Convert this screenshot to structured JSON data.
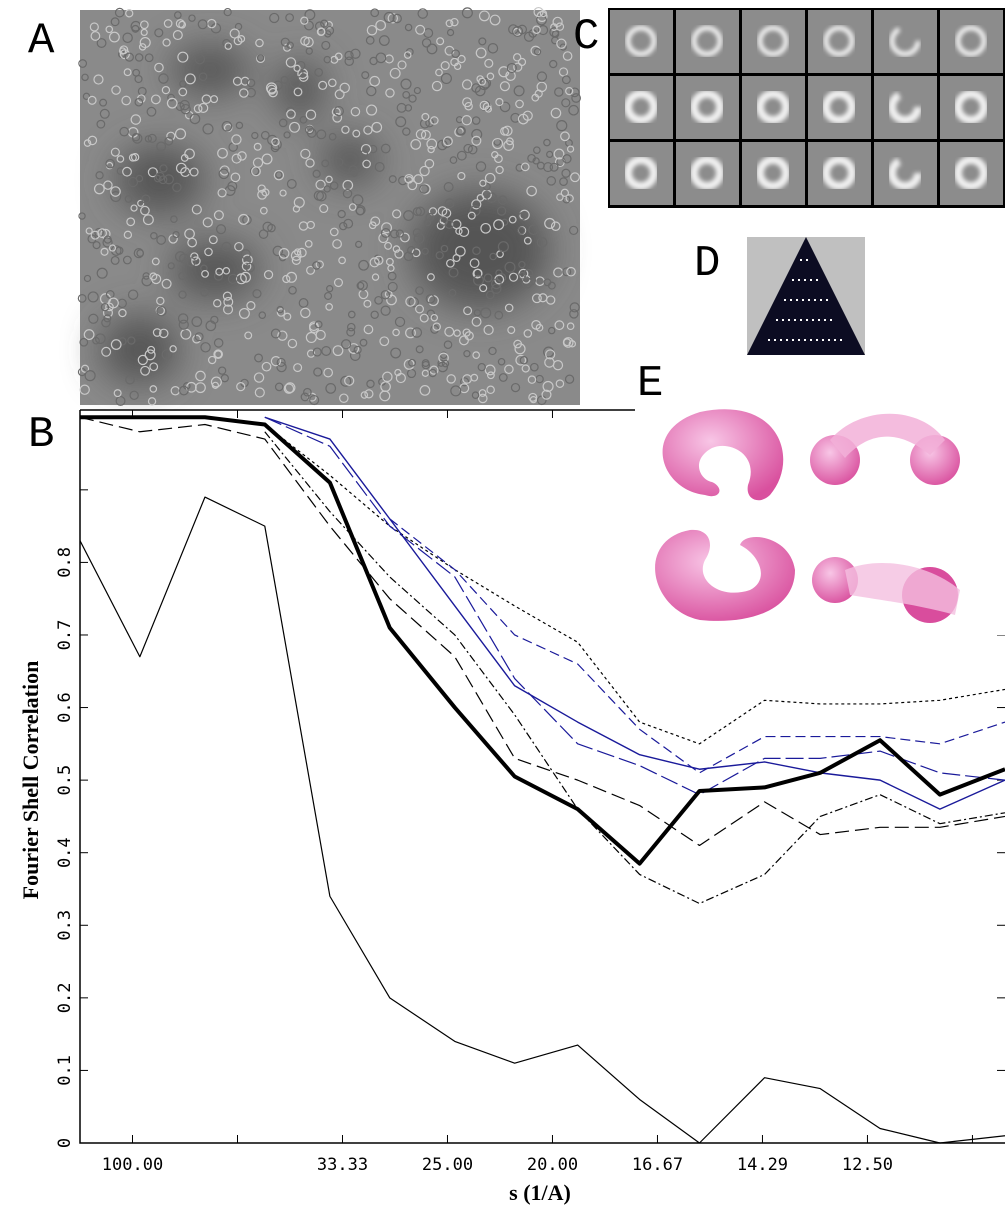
{
  "panels": [
    "A",
    "B",
    "C",
    "D",
    "E"
  ],
  "chart_data": {
    "type": "line",
    "x_label": "s (1/A)",
    "y_label": "Fourier Shell Correlation",
    "x": [
      0.005,
      0.0107,
      0.0169,
      0.0226,
      0.0288,
      0.0345,
      0.0407,
      0.0464,
      0.0524,
      0.0583,
      0.064,
      0.0702,
      0.0755,
      0.0812,
      0.0869,
      0.0931
    ],
    "xlim": [
      0.005,
      0.0931
    ],
    "xticks": [
      {
        "value": 0.01,
        "label": "100.00"
      },
      {
        "value": 0.02
      },
      {
        "value": 0.03,
        "label": "33.33"
      },
      {
        "value": 0.04,
        "label": "25.00"
      },
      {
        "value": 0.05,
        "label": "20.00"
      },
      {
        "value": 0.06,
        "label": "16.67"
      },
      {
        "value": 0.07,
        "label": "14.29"
      },
      {
        "value": 0.08,
        "label": "12.50"
      },
      {
        "value": 0.09
      }
    ],
    "ylim": [
      0,
      1.01
    ],
    "yticks": [
      0,
      0.1,
      0.2,
      0.3,
      0.4,
      0.5,
      0.6,
      0.7,
      0.8,
      {
        "value": 0.9
      },
      {
        "value": 1.0
      }
    ],
    "series": [
      {
        "color": "#000000",
        "width": 1.2,
        "dash": "none",
        "values": [
          0.83,
          0.67,
          0.89,
          0.85,
          0.34,
          0.2,
          0.14,
          0.11,
          0.135,
          0.06,
          0.0,
          0.09,
          0.075,
          0.02,
          0.0,
          0.01
        ]
      },
      {
        "color": "#000000",
        "width": 1.2,
        "dash": "14 6",
        "values": [
          1.0,
          0.98,
          0.99,
          0.97,
          0.85,
          0.75,
          0.67,
          0.53,
          0.5,
          0.465,
          0.41,
          0.47,
          0.425,
          0.435,
          0.435,
          0.45
        ]
      },
      {
        "color": "#000000",
        "width": 1.2,
        "dash": "8 3 2 3",
        "values": [
          null,
          null,
          null,
          0.98,
          0.87,
          0.78,
          0.7,
          0.59,
          0.46,
          0.37,
          0.33,
          0.37,
          0.45,
          0.48,
          0.44,
          0.455
        ]
      },
      {
        "color": "#000000",
        "width": 1.2,
        "dash": "3 3",
        "values": [
          null,
          null,
          null,
          0.99,
          0.92,
          0.85,
          0.79,
          0.74,
          0.69,
          0.58,
          0.55,
          0.61,
          0.605,
          0.605,
          0.61,
          0.625
        ]
      },
      {
        "color": "#1a1a9a",
        "width": 1.2,
        "dash": "10 5",
        "values": [
          null,
          null,
          null,
          null,
          null,
          0.86,
          0.79,
          0.7,
          0.66,
          0.57,
          0.51,
          0.56,
          0.56,
          0.56,
          0.55,
          0.58
        ]
      },
      {
        "color": "#1a1a9a",
        "width": 1.2,
        "dash": "18 5",
        "values": [
          null,
          null,
          null,
          1.0,
          0.96,
          0.85,
          0.78,
          0.64,
          0.55,
          0.52,
          0.48,
          0.53,
          0.53,
          0.54,
          0.51,
          0.5
        ]
      },
      {
        "color": "#1a1a9a",
        "width": 1.4,
        "dash": "none",
        "values": [
          null,
          null,
          null,
          1.0,
          0.97,
          0.86,
          0.74,
          0.63,
          0.58,
          0.535,
          0.515,
          0.525,
          0.51,
          0.5,
          0.46,
          0.5
        ]
      },
      {
        "color": "#000000",
        "width": 4,
        "dash": "none",
        "values": [
          1.0,
          1.0,
          1.0,
          0.99,
          0.91,
          0.71,
          0.6,
          0.505,
          0.46,
          0.385,
          0.485,
          0.49,
          0.51,
          0.555,
          0.48,
          0.515
        ]
      }
    ]
  }
}
